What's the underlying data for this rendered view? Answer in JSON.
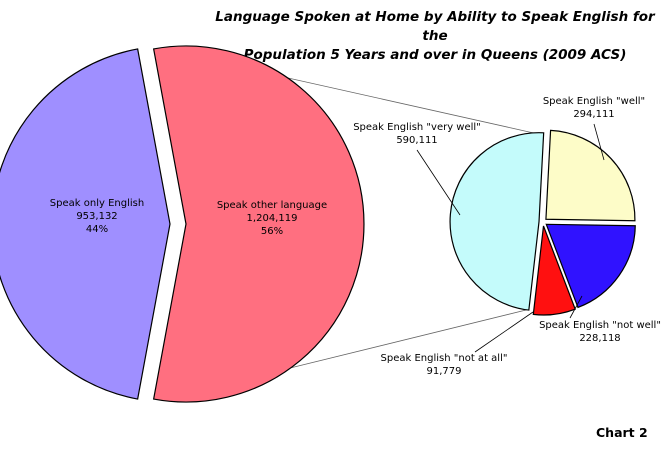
{
  "chart_data": {
    "type": "bar-of-pie",
    "title_lines": [
      "Language Spoken at Home by Ability to Speak English for the",
      "Population 5 Years and over in Queens (2009 ACS)"
    ],
    "main_pie": [
      {
        "label": "Speak only English",
        "value": 953132,
        "value_text": "953,132",
        "percent_text": "44%",
        "color": "#9f8fff"
      },
      {
        "label": "Speak other language",
        "value": 1204119,
        "value_text": "1,204,119",
        "percent_text": "56%",
        "color": "#ff6f80"
      }
    ],
    "detail_pie": [
      {
        "label": "Speak English \"very well\"",
        "value": 590111,
        "value_text": "590,111",
        "color": "#c4fbfb"
      },
      {
        "label": "Speak English \"well\"",
        "value": 294111,
        "value_text": "294,111",
        "color": "#fdfcc8"
      },
      {
        "label": "Speak English \"not well\"",
        "value": 228118,
        "value_text": "228,118",
        "color": "#3012ff"
      },
      {
        "label": "Speak English \"not at all\"",
        "value": 91779,
        "value_text": "91,779",
        "color": "#ff1010"
      }
    ],
    "footer": "Chart 2"
  }
}
